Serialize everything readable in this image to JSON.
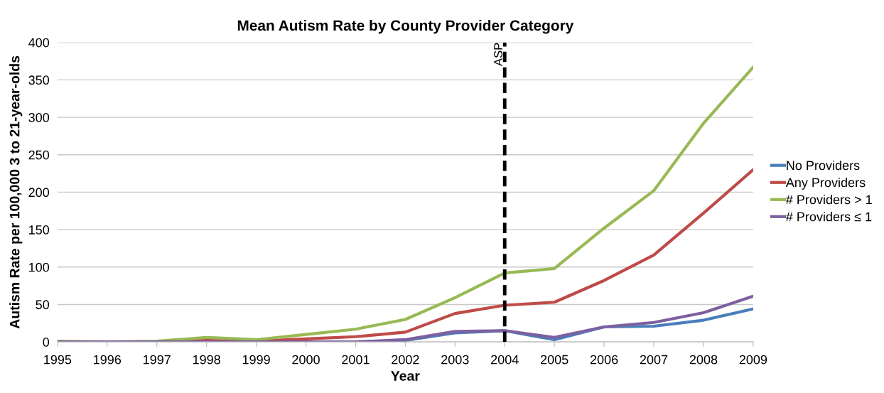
{
  "chart_data": {
    "type": "line",
    "title": "Mean Autism Rate by County Provider Category",
    "xlabel": "Year",
    "ylabel": "Autism Rate per 100,000 3 to 21-year-olds",
    "x": [
      1995,
      1996,
      1997,
      1998,
      1999,
      2000,
      2001,
      2002,
      2003,
      2004,
      2005,
      2006,
      2007,
      2008,
      2009
    ],
    "series": [
      {
        "name": "No Providers",
        "color": "#4a7ebb",
        "values": [
          null,
          null,
          null,
          null,
          null,
          0,
          0,
          2,
          12,
          15,
          3,
          20,
          21,
          29,
          44
        ]
      },
      {
        "name": "Any Providers",
        "color": "#be4b48",
        "values": [
          null,
          null,
          0,
          2,
          1,
          4,
          7,
          13,
          38,
          49,
          53,
          82,
          116,
          172,
          230
        ]
      },
      {
        "name": "# Providers > 1",
        "color": "#98b954",
        "values": [
          1,
          0,
          1,
          6,
          3,
          10,
          17,
          30,
          59,
          92,
          98,
          152,
          202,
          292,
          367
        ]
      },
      {
        "name": "# Providers ≤ 1",
        "color": "#7d60a0",
        "values": [
          0,
          0,
          0,
          0,
          0,
          0,
          0,
          3,
          14,
          15,
          6,
          20,
          26,
          39,
          61
        ]
      }
    ],
    "xlim": [
      1995,
      2009
    ],
    "xticks": [
      1995,
      1996,
      1997,
      1998,
      1999,
      2000,
      2001,
      2002,
      2003,
      2004,
      2005,
      2006,
      2007,
      2008,
      2009
    ],
    "ylim": [
      0,
      400
    ],
    "yticks": [
      0,
      50,
      100,
      150,
      200,
      250,
      300,
      350,
      400
    ],
    "ref_lines": [
      {
        "axis": "x",
        "value": 2004,
        "label": "ASP",
        "color": "#000000",
        "line_style": "dashed"
      }
    ],
    "grid": "y",
    "legend": "right",
    "marker": "none",
    "line_style": "solid"
  }
}
